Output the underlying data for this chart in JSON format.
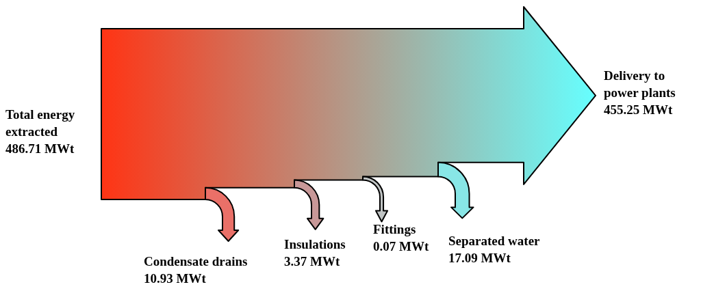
{
  "chart_data": {
    "type": "other",
    "categories": [
      "Total energy extracted",
      "Condensate drains",
      "Insulations",
      "Fittings",
      "Separated water",
      "Delivery to power plants"
    ],
    "values": [
      486.71,
      10.93,
      3.37,
      0.07,
      17.09,
      455.25
    ],
    "value_labels": [
      "486.71 MWt",
      "10.93 MWt",
      "3.37 MWt",
      "0.07 MWt",
      "17.09 MWt",
      "455.25 MWt"
    ],
    "colors": [
      "#ff3414",
      "#ea7068",
      "#c89898",
      "#c0c4c4",
      "#88e6e6",
      "#66ffff"
    ]
  }
}
